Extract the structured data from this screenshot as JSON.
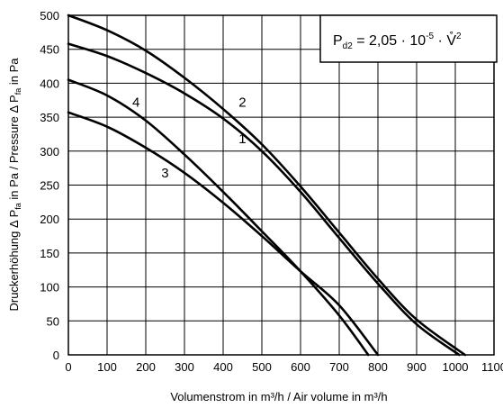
{
  "chart_data": {
    "type": "line",
    "xlabel": "Volumenstrom in m³/h / Air volume in m³/h",
    "ylabel_parts": {
      "pre": "Druckerhöhung Δ P",
      "sub": "fa",
      "mid": " in Pa / Pressure Δ P",
      "sub2": "fa",
      "post": " in Pa"
    },
    "xlim": [
      0,
      1100
    ],
    "ylim": [
      0,
      500
    ],
    "x_ticks": [
      "0",
      "100",
      "200",
      "300",
      "400",
      "500",
      "600",
      "700",
      "800",
      "900",
      "1000",
      "1100"
    ],
    "y_ticks": [
      "0",
      "50",
      "100",
      "150",
      "200",
      "250",
      "300",
      "350",
      "400",
      "450",
      "500"
    ],
    "grid": true,
    "formula": {
      "p": "P",
      "sub": "d2",
      "rest": " = 2,05 · 10",
      "exp": "-5",
      "dot": " · ",
      "vdot": "V̊",
      "sq": "2"
    },
    "series": [
      {
        "name": "1",
        "label_at": [
          440,
          318
        ],
        "points": [
          [
            0,
            458
          ],
          [
            100,
            440
          ],
          [
            200,
            415
          ],
          [
            300,
            385
          ],
          [
            400,
            348
          ],
          [
            500,
            300
          ],
          [
            600,
            240
          ],
          [
            700,
            172
          ],
          [
            800,
            105
          ],
          [
            900,
            45
          ],
          [
            1010,
            0
          ]
        ]
      },
      {
        "name": "2",
        "label_at": [
          440,
          372
        ],
        "points": [
          [
            0,
            500
          ],
          [
            100,
            478
          ],
          [
            200,
            448
          ],
          [
            300,
            408
          ],
          [
            400,
            362
          ],
          [
            500,
            310
          ],
          [
            600,
            248
          ],
          [
            700,
            180
          ],
          [
            800,
            112
          ],
          [
            900,
            52
          ],
          [
            1025,
            0
          ]
        ]
      },
      {
        "name": "3",
        "label_at": [
          240,
          268
        ],
        "points": [
          [
            0,
            357
          ],
          [
            100,
            336
          ],
          [
            200,
            305
          ],
          [
            300,
            268
          ],
          [
            400,
            224
          ],
          [
            500,
            175
          ],
          [
            600,
            123
          ],
          [
            700,
            73
          ],
          [
            800,
            0
          ]
        ]
      },
      {
        "name": "4",
        "label_at": [
          165,
          372
        ],
        "points": [
          [
            0,
            405
          ],
          [
            100,
            382
          ],
          [
            200,
            345
          ],
          [
            300,
            295
          ],
          [
            400,
            240
          ],
          [
            500,
            182
          ],
          [
            600,
            123
          ],
          [
            700,
            58
          ],
          [
            775,
            0
          ]
        ]
      }
    ]
  }
}
